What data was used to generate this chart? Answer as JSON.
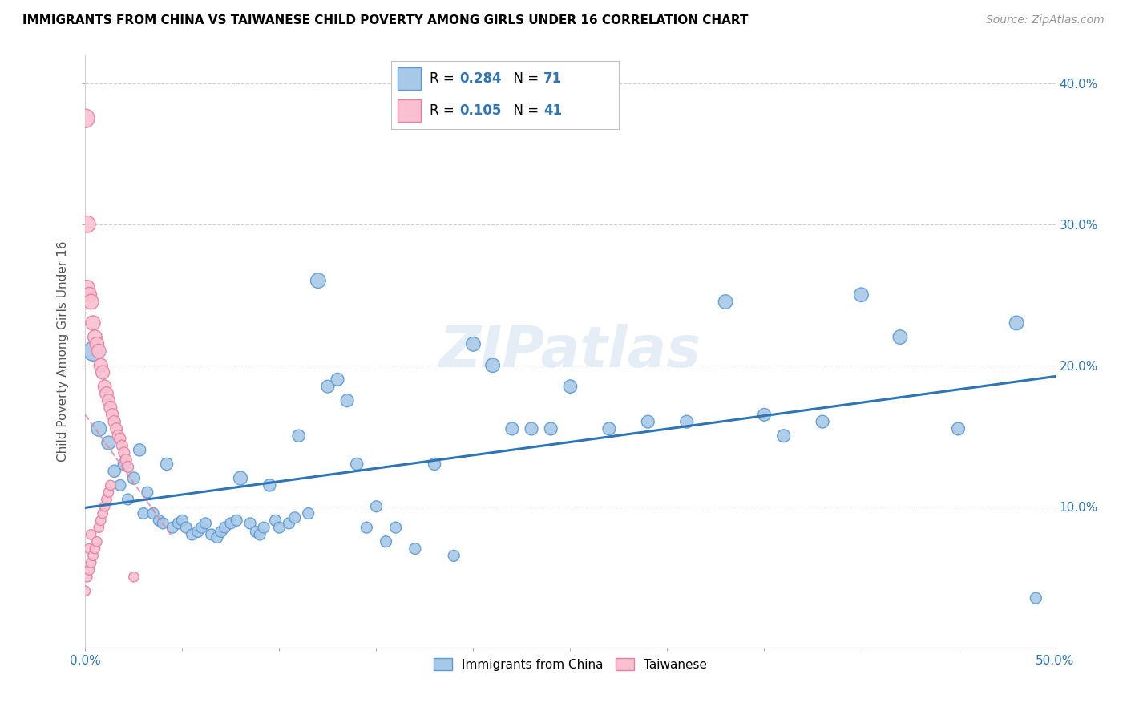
{
  "title": "IMMIGRANTS FROM CHINA VS TAIWANESE CHILD POVERTY AMONG GIRLS UNDER 16 CORRELATION CHART",
  "source": "Source: ZipAtlas.com",
  "ylabel": "Child Poverty Among Girls Under 16",
  "xlim": [
    0.0,
    0.5
  ],
  "ylim": [
    0.0,
    0.42
  ],
  "xticks": [
    0.0,
    0.1,
    0.2,
    0.3,
    0.4,
    0.5
  ],
  "xticklabels": [
    "0.0%",
    "",
    "",
    "",
    "",
    "50.0%"
  ],
  "yticks": [
    0.0,
    0.1,
    0.2,
    0.3,
    0.4
  ],
  "yticklabels_right": [
    "",
    "10.0%",
    "20.0%",
    "30.0%",
    "40.0%"
  ],
  "blue_color": "#a8c8e8",
  "blue_edge": "#5b9bd5",
  "pink_color": "#f8c0d0",
  "pink_edge": "#e87fa0",
  "trend_blue_color": "#2e75b6",
  "trend_pink_color": "#e87fa0",
  "legend_R_blue": "0.284",
  "legend_N_blue": "71",
  "legend_R_pink": "0.105",
  "legend_N_pink": "41",
  "grid_color": "#d0d0d0",
  "blue_scatter_x": [
    0.004,
    0.007,
    0.012,
    0.015,
    0.018,
    0.02,
    0.022,
    0.025,
    0.028,
    0.03,
    0.032,
    0.035,
    0.038,
    0.04,
    0.042,
    0.045,
    0.048,
    0.05,
    0.052,
    0.055,
    0.058,
    0.06,
    0.062,
    0.065,
    0.068,
    0.07,
    0.072,
    0.075,
    0.078,
    0.08,
    0.085,
    0.088,
    0.09,
    0.092,
    0.095,
    0.098,
    0.1,
    0.105,
    0.108,
    0.11,
    0.115,
    0.12,
    0.125,
    0.13,
    0.135,
    0.14,
    0.145,
    0.15,
    0.155,
    0.16,
    0.17,
    0.18,
    0.19,
    0.2,
    0.21,
    0.22,
    0.23,
    0.24,
    0.25,
    0.27,
    0.29,
    0.31,
    0.33,
    0.35,
    0.36,
    0.38,
    0.4,
    0.42,
    0.45,
    0.48,
    0.49
  ],
  "blue_scatter_y": [
    0.21,
    0.155,
    0.145,
    0.125,
    0.115,
    0.13,
    0.105,
    0.12,
    0.14,
    0.095,
    0.11,
    0.095,
    0.09,
    0.088,
    0.13,
    0.085,
    0.088,
    0.09,
    0.085,
    0.08,
    0.082,
    0.085,
    0.088,
    0.08,
    0.078,
    0.082,
    0.085,
    0.088,
    0.09,
    0.12,
    0.088,
    0.082,
    0.08,
    0.085,
    0.115,
    0.09,
    0.085,
    0.088,
    0.092,
    0.15,
    0.095,
    0.26,
    0.185,
    0.19,
    0.175,
    0.13,
    0.085,
    0.1,
    0.075,
    0.085,
    0.07,
    0.13,
    0.065,
    0.215,
    0.2,
    0.155,
    0.155,
    0.155,
    0.185,
    0.155,
    0.16,
    0.16,
    0.245,
    0.165,
    0.15,
    0.16,
    0.25,
    0.22,
    0.155,
    0.23,
    0.035
  ],
  "pink_scatter_x": [
    0.0,
    0.0,
    0.001,
    0.001,
    0.001,
    0.002,
    0.002,
    0.002,
    0.003,
    0.003,
    0.003,
    0.004,
    0.004,
    0.005,
    0.005,
    0.006,
    0.006,
    0.007,
    0.007,
    0.008,
    0.008,
    0.009,
    0.009,
    0.01,
    0.01,
    0.011,
    0.011,
    0.012,
    0.012,
    0.013,
    0.013,
    0.014,
    0.015,
    0.016,
    0.017,
    0.018,
    0.019,
    0.02,
    0.021,
    0.022,
    0.025
  ],
  "pink_scatter_y": [
    0.375,
    0.04,
    0.3,
    0.255,
    0.05,
    0.25,
    0.07,
    0.055,
    0.245,
    0.08,
    0.06,
    0.23,
    0.065,
    0.22,
    0.07,
    0.215,
    0.075,
    0.21,
    0.085,
    0.2,
    0.09,
    0.195,
    0.095,
    0.185,
    0.1,
    0.18,
    0.105,
    0.175,
    0.11,
    0.17,
    0.115,
    0.165,
    0.16,
    0.155,
    0.15,
    0.148,
    0.143,
    0.138,
    0.133,
    0.128,
    0.05
  ],
  "blue_sizes": [
    300,
    180,
    150,
    120,
    100,
    120,
    100,
    120,
    120,
    100,
    100,
    100,
    100,
    100,
    120,
    100,
    100,
    100,
    100,
    100,
    100,
    100,
    100,
    100,
    100,
    100,
    100,
    100,
    100,
    150,
    100,
    100,
    100,
    100,
    120,
    100,
    100,
    100,
    100,
    120,
    100,
    180,
    130,
    130,
    130,
    120,
    100,
    100,
    100,
    100,
    100,
    120,
    100,
    160,
    160,
    130,
    130,
    130,
    140,
    130,
    130,
    130,
    160,
    130,
    130,
    130,
    160,
    160,
    130,
    160,
    100
  ],
  "pink_sizes": [
    280,
    80,
    220,
    180,
    80,
    180,
    80,
    80,
    180,
    80,
    80,
    170,
    80,
    160,
    80,
    160,
    80,
    160,
    80,
    150,
    80,
    150,
    80,
    140,
    80,
    140,
    80,
    130,
    80,
    130,
    80,
    120,
    120,
    110,
    110,
    100,
    100,
    100,
    100,
    100,
    80
  ]
}
